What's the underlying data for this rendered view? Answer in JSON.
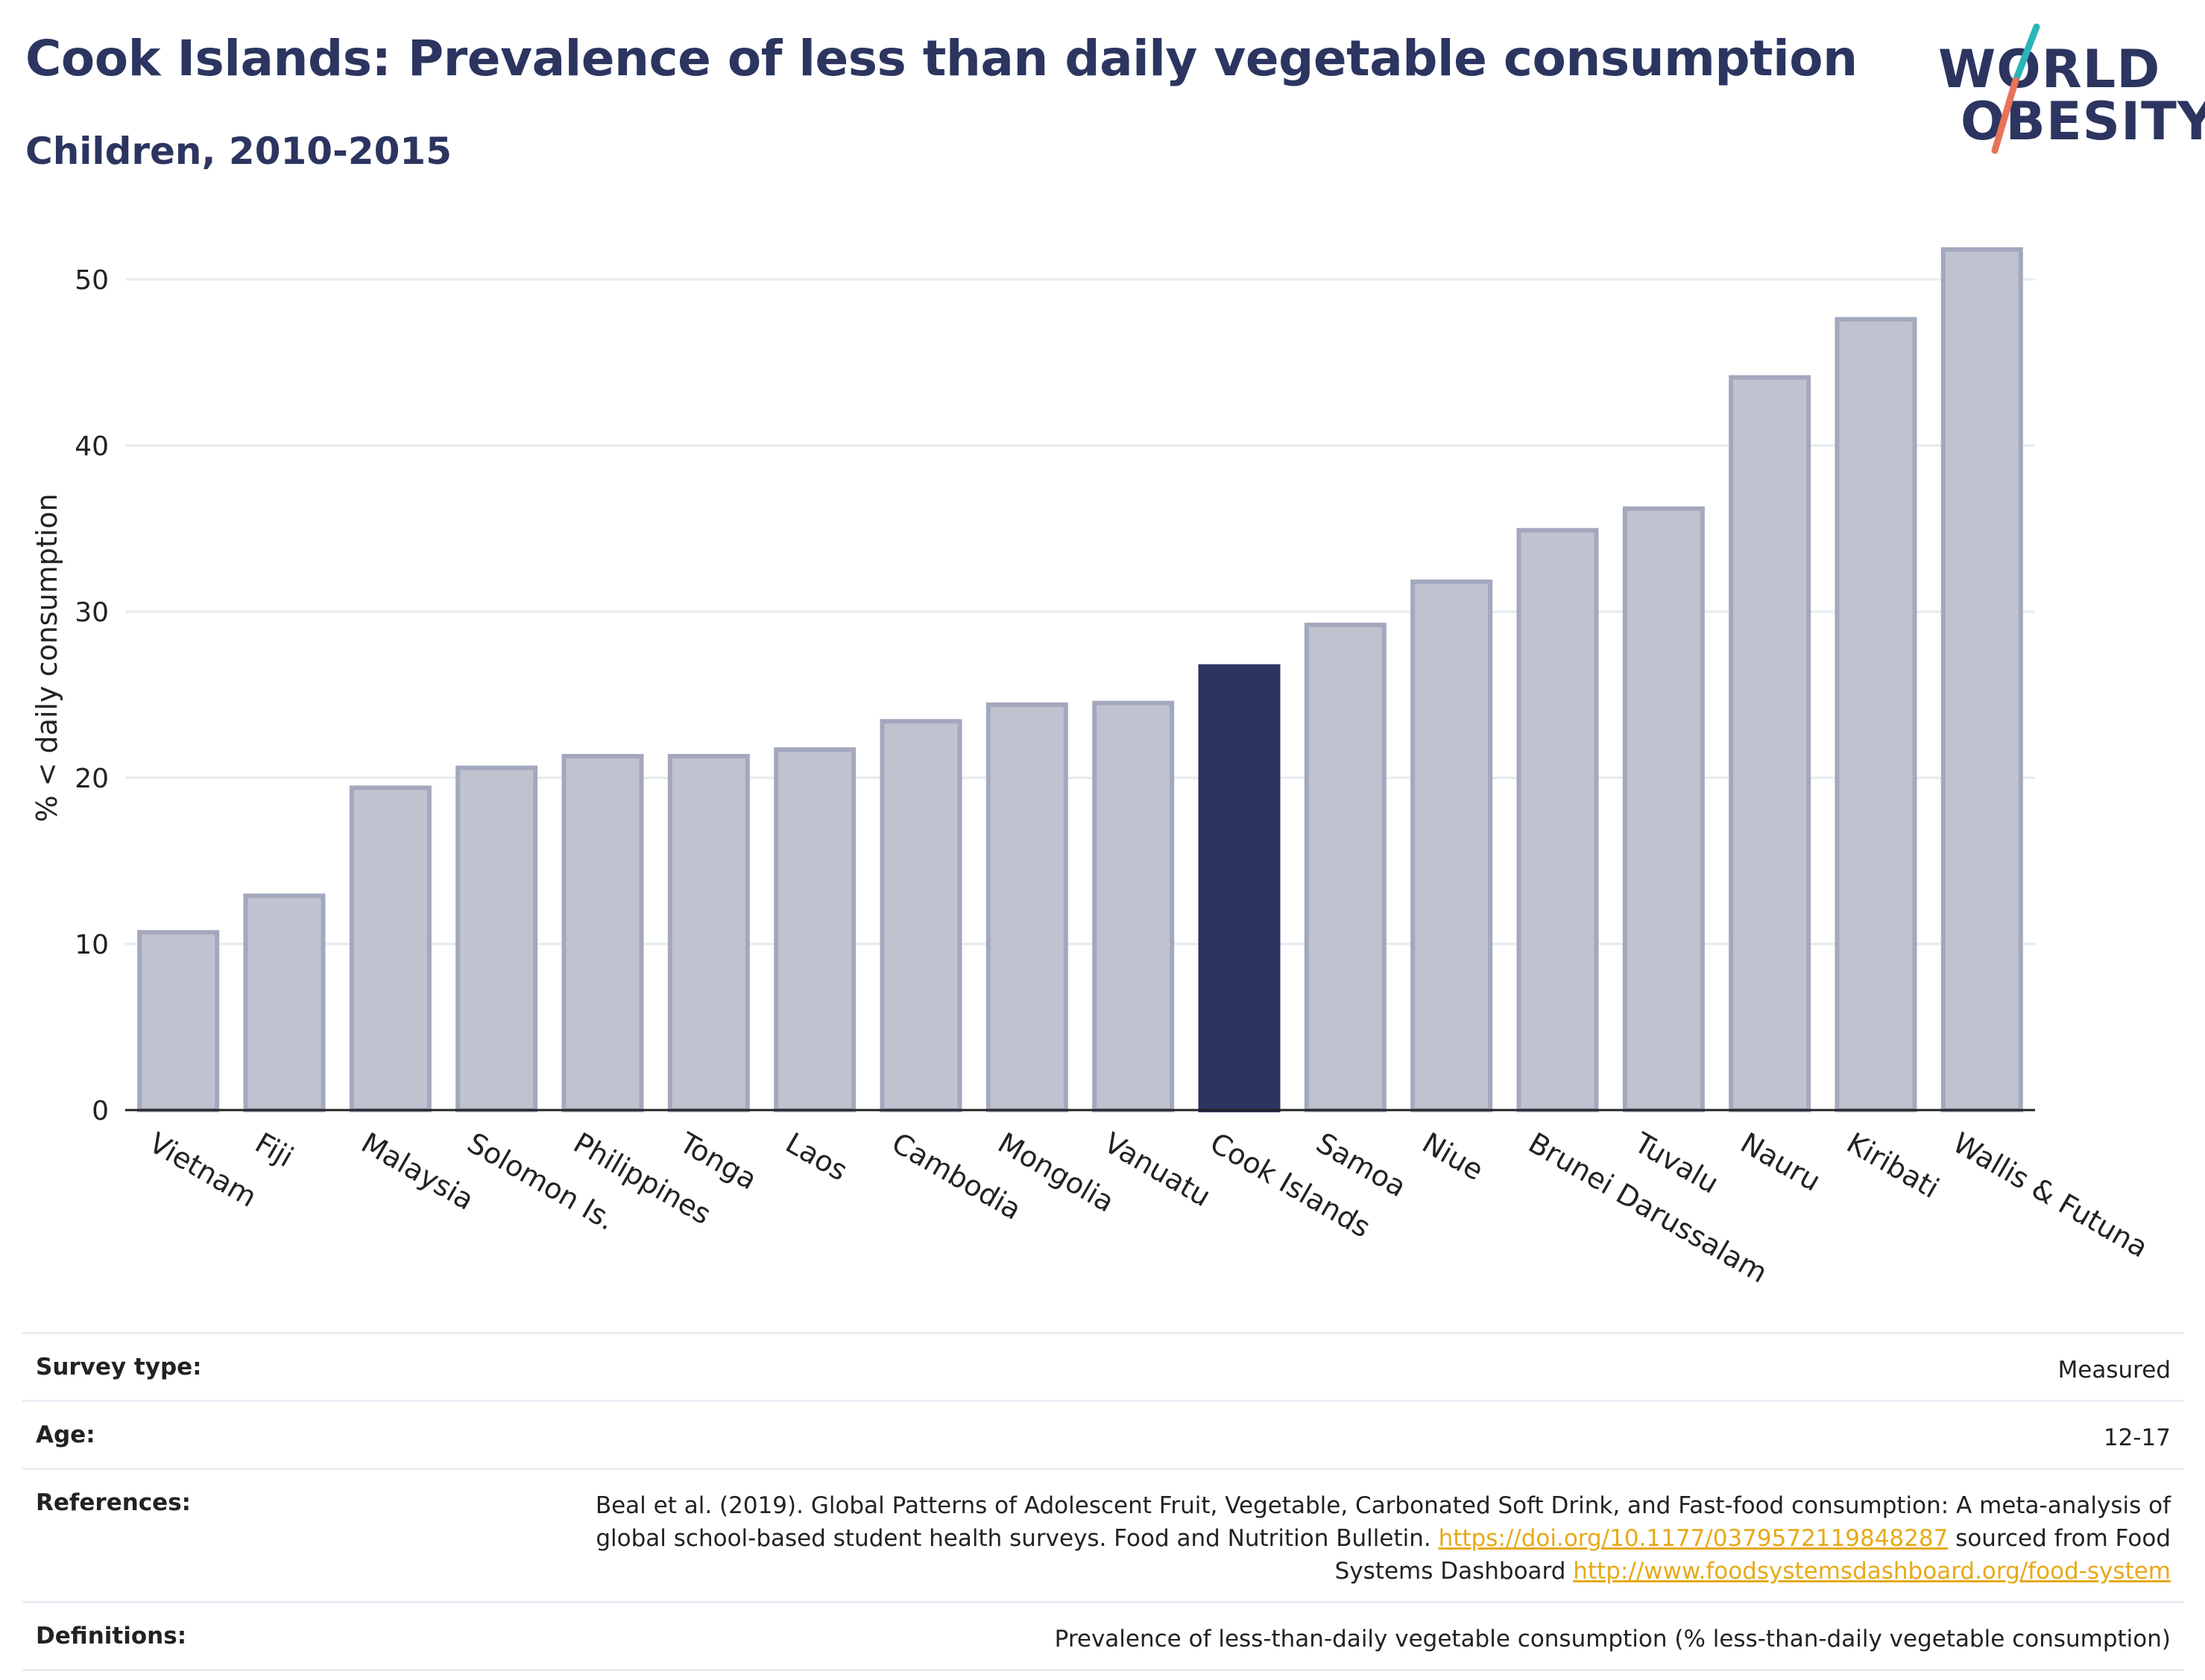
{
  "header": {
    "title": "Cook Islands: Prevalence of less than daily vegetable consumption",
    "subtitle": "Children, 2010-2015",
    "logo": {
      "line1": "WORLD",
      "line2": "OBESITY",
      "accent_teal": "#2bb5b8",
      "accent_coral": "#e8735a"
    }
  },
  "chart_data": {
    "type": "bar",
    "title": "",
    "xlabel": "",
    "ylabel": "% < daily consumption",
    "ylim": [
      0,
      55
    ],
    "yticks": [
      0,
      10,
      20,
      30,
      40,
      50
    ],
    "grid": true,
    "categories": [
      "Vietnam",
      "Fiji",
      "Malaysia",
      "Solomon Is.",
      "Philippines",
      "Tonga",
      "Laos",
      "Cambodia",
      "Mongolia",
      "Vanuatu",
      "Cook Islands",
      "Samoa",
      "Niue",
      "Brunei Darussalam",
      "Tuvalu",
      "Nauru",
      "Kiribati",
      "Wallis & Futuna"
    ],
    "values": [
      10.7,
      12.9,
      19.4,
      20.6,
      21.3,
      21.3,
      21.7,
      23.4,
      24.4,
      24.5,
      26.7,
      29.2,
      31.8,
      34.9,
      36.2,
      44.1,
      47.6,
      51.8
    ],
    "highlight": "Cook Islands",
    "colors": {
      "bar": "#c0c3cf",
      "bar_border": "#a3a8bd",
      "highlight": "#2c3560",
      "grid": "#e6eaf0"
    }
  },
  "info_table": [
    {
      "label": "Survey type:",
      "value": "Measured"
    },
    {
      "label": "Age:",
      "value": "12-17"
    },
    {
      "label": "References:",
      "text1": "Beal et al. (2019). Global Patterns of Adolescent Fruit, Vegetable, Carbonated Soft Drink, and Fast-food consumption: A meta-analysis of global school-based student health surveys. Food and Nutrition Bulletin.",
      "link1": "https://doi.org/10.1177/0379572119848287",
      "text2": "sourced from Food Systems Dashboard",
      "link2": "http://www.foodsystemsdashboard.org/food-system"
    },
    {
      "label": "Definitions:",
      "value": "Prevalence of less-than-daily vegetable consumption (% less-than-daily vegetable consumption)"
    }
  ]
}
